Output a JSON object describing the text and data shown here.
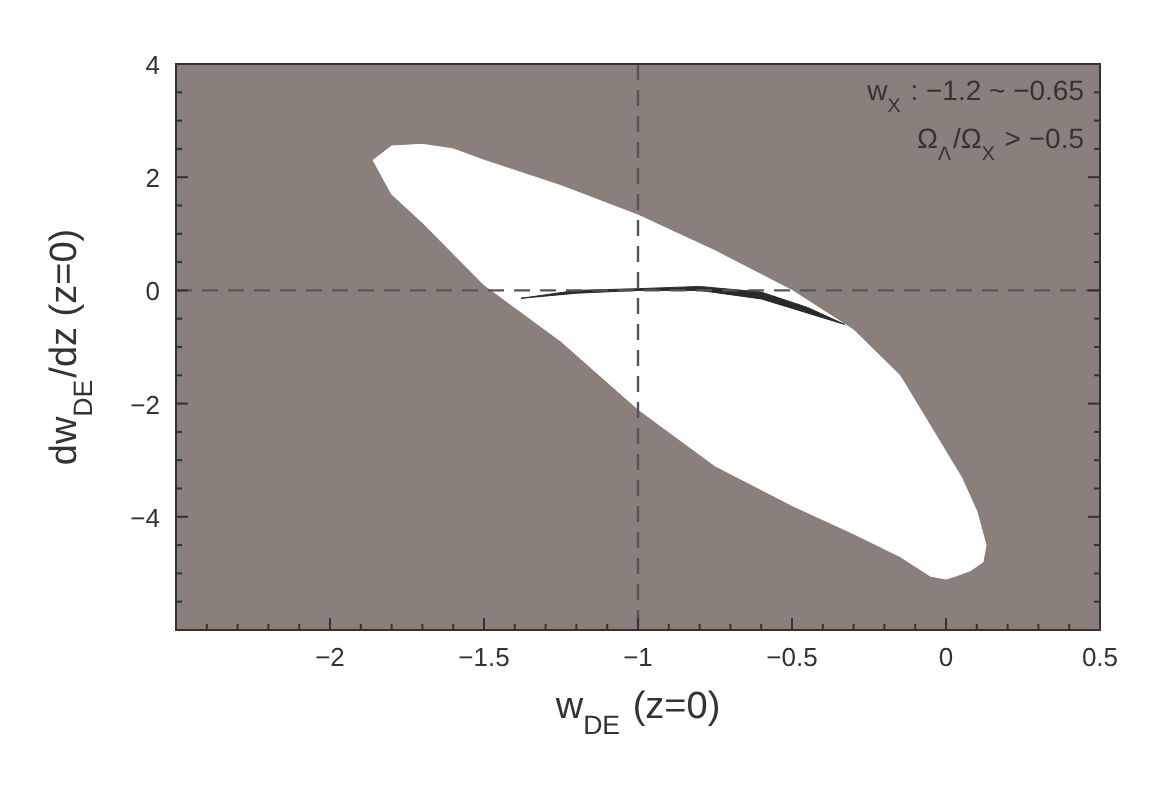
{
  "chart_data": {
    "type": "area",
    "xlabel": "w$_{DE}$ (z=0)",
    "ylabel": "dw$_{DE}$/dz (z=0)",
    "xlim": [
      -2.5,
      0.5
    ],
    "ylim": [
      -6,
      4
    ],
    "xticks": [
      {
        "value": -2.5,
        "label": null
      },
      {
        "value": -2.4,
        "label": null
      },
      {
        "value": -2.3,
        "label": null
      },
      {
        "value": -2.2,
        "label": null
      },
      {
        "value": -2.1,
        "label": null
      },
      -2,
      {
        "value": -1.9,
        "label": null
      },
      {
        "value": -1.8,
        "label": null
      },
      {
        "value": -1.7,
        "label": null
      },
      {
        "value": -1.6,
        "label": null
      },
      -1.5,
      {
        "value": -1.4,
        "label": null
      },
      {
        "value": -1.3,
        "label": null
      },
      {
        "value": -1.2,
        "label": null
      },
      {
        "value": -1.1,
        "label": null
      },
      -1,
      {
        "value": -0.9,
        "label": null
      },
      {
        "value": -0.8,
        "label": null
      },
      {
        "value": -0.7,
        "label": null
      },
      {
        "value": -0.6,
        "label": null
      },
      -0.5,
      {
        "value": -0.4,
        "label": null
      },
      {
        "value": -0.3,
        "label": null
      },
      {
        "value": -0.2,
        "label": null
      },
      {
        "value": -0.1,
        "label": null
      },
      0,
      {
        "value": 0.1,
        "label": null
      },
      {
        "value": 0.2,
        "label": null
      },
      {
        "value": 0.3,
        "label": null
      },
      {
        "value": 0.4,
        "label": null
      },
      0.5
    ],
    "yticks": [
      {
        "value": -6,
        "label": null
      },
      {
        "value": -5.5,
        "label": null
      },
      {
        "value": -5,
        "label": null
      },
      {
        "value": -4.5,
        "label": null
      },
      -4,
      {
        "value": -3.5,
        "label": null
      },
      {
        "value": -3,
        "label": null
      },
      {
        "value": -2.5,
        "label": null
      },
      -2,
      {
        "value": -1.5,
        "label": null
      },
      {
        "value": -1,
        "label": null
      },
      {
        "value": -0.5,
        "label": null
      },
      0,
      {
        "value": 0.5,
        "label": null
      },
      {
        "value": 1,
        "label": null
      },
      {
        "value": 1.5,
        "label": null
      },
      2,
      {
        "value": 2.5,
        "label": null
      },
      {
        "value": 3,
        "label": null
      },
      {
        "value": 3.5,
        "label": null
      },
      4
    ],
    "series": [
      {
        "color": "#ffffff",
        "x": [
          -1.86,
          -1.8,
          -1.7,
          -1.6,
          -1.5,
          -1.25,
          -1,
          -0.75,
          -0.5,
          -0.3,
          -0.15,
          -0.05,
          0.05,
          0.1,
          0.13,
          0.12,
          0.08,
          0.03,
          0,
          -0.05,
          -0.15,
          -0.3,
          -0.5,
          -0.75,
          -1,
          -1.25,
          -1.5,
          -1.7,
          -1.8
        ],
        "values": [
          2.3,
          2.55,
          2.58,
          2.5,
          2.3,
          1.85,
          1.33,
          0.7,
          0,
          -0.7,
          -1.5,
          -2.4,
          -3.3,
          -3.9,
          -4.5,
          -4.8,
          -4.95,
          -5.05,
          -5.1,
          -5.05,
          -4.7,
          -4.3,
          -3.8,
          -3.1,
          -2.1,
          -0.9,
          0.1,
          1.2,
          1.7
        ]
      },
      {
        "color": "#2a2a2a",
        "x": [
          -1.38,
          -1.2,
          -1,
          -0.8,
          -0.6,
          -0.45,
          -0.33,
          -0.45,
          -0.6,
          -0.8,
          -1,
          -1.2
        ],
        "values": [
          -0.14,
          0,
          0.03,
          0.07,
          -0.03,
          -0.3,
          -0.6,
          -0.4,
          -0.15,
          0,
          0,
          -0.05
        ]
      }
    ],
    "ref_lines": [
      {
        "axis": "x",
        "value": -1,
        "color": "#555555",
        "line_style": "dashed"
      },
      {
        "axis": "y",
        "value": 0,
        "color": "#555555",
        "line_style": "dashed"
      }
    ],
    "annotations": [
      "w$_{X}$ : −1.2 ~ −0.65",
      "Ω$_{Λ}$/Ω$_{X}$ > −0.5"
    ]
  }
}
